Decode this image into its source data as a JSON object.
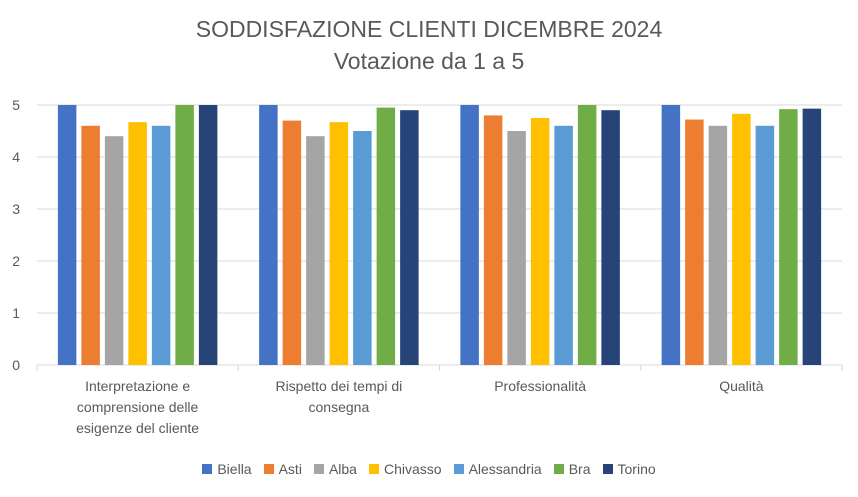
{
  "chart_data": {
    "type": "bar",
    "title": "SODDISFAZIONE CLIENTI DICEMBRE 2024",
    "subtitle": "Votazione da 1 a 5",
    "categories": [
      [
        "Interpretazione e",
        "comprensione delle",
        "esigenze del cliente"
      ],
      [
        "Rispetto dei tempi di",
        "consegna"
      ],
      [
        "Professionalità"
      ],
      [
        "Qualità"
      ]
    ],
    "ylim": [
      0,
      5
    ],
    "yticks": [
      "0",
      "1",
      "2",
      "3",
      "4",
      "5"
    ],
    "grid": true,
    "legend_position": "bottom",
    "series": [
      {
        "name": "Biella",
        "color": "#4472C4",
        "values": [
          5.0,
          5.0,
          5.0,
          5.0
        ]
      },
      {
        "name": "Asti",
        "color": "#ED7D31",
        "values": [
          4.6,
          4.7,
          4.8,
          4.72
        ]
      },
      {
        "name": "Alba",
        "color": "#A5A5A5",
        "values": [
          4.4,
          4.4,
          4.5,
          4.6
        ]
      },
      {
        "name": "Chivasso",
        "color": "#FFC000",
        "values": [
          4.67,
          4.67,
          4.75,
          4.83
        ]
      },
      {
        "name": "Alessandria",
        "color": "#5B9BD5",
        "values": [
          4.6,
          4.5,
          4.6,
          4.6
        ]
      },
      {
        "name": "Bra",
        "color": "#70AD47",
        "values": [
          5.0,
          4.95,
          5.0,
          4.92
        ]
      },
      {
        "name": "Torino",
        "color": "#264478",
        "values": [
          5.0,
          4.9,
          4.9,
          4.93
        ]
      }
    ]
  }
}
